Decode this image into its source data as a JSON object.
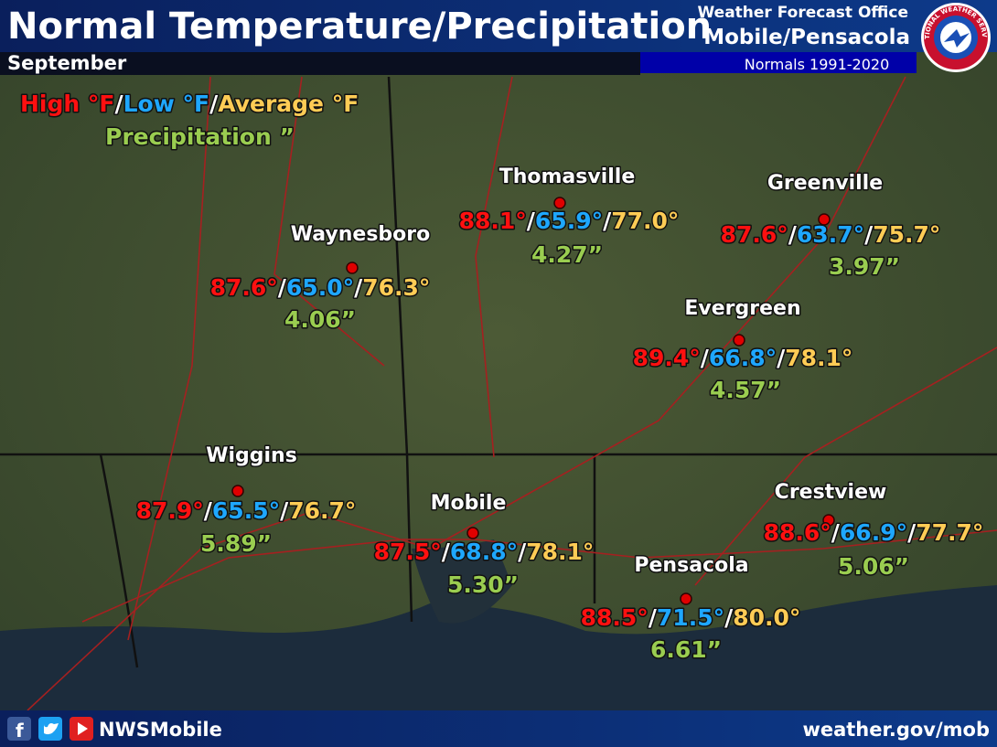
{
  "header": {
    "title": "Normal Temperature/Precipitation",
    "month": "September",
    "office_line1": "Weather Forecast Office",
    "office_line2": "Mobile/Pensacola",
    "normals": "Normals 1991-2020",
    "logo_text": "NATIONAL WEATHER SERVICE"
  },
  "legend": {
    "high": "High °F",
    "low": "Low °F",
    "average": "Average °F",
    "precipitation": "Precipitation ”",
    "separator": "/"
  },
  "cities": [
    {
      "name": "Thomasville",
      "high": "88.1°",
      "low": "65.9°",
      "average": "77.0°",
      "precip": "4.27”"
    },
    {
      "name": "Waynesboro",
      "high": "87.6°",
      "low": "65.0°",
      "average": "76.3°",
      "precip": "4.06”"
    },
    {
      "name": "Greenville",
      "high": "87.6°",
      "low": "63.7°",
      "average": "75.7°",
      "precip": "3.97”"
    },
    {
      "name": "Evergreen",
      "high": "89.4°",
      "low": "66.8°",
      "average": "78.1°",
      "precip": "4.57”"
    },
    {
      "name": "Wiggins",
      "high": "87.9°",
      "low": "65.5°",
      "average": "76.7°",
      "precip": "5.89”"
    },
    {
      "name": "Mobile",
      "high": "87.5°",
      "low": "68.8°",
      "average": "78.1°",
      "precip": "5.30”"
    },
    {
      "name": "Crestview",
      "high": "88.6°",
      "low": "66.9°",
      "average": "77.7°",
      "precip": "5.06”"
    },
    {
      "name": "Pensacola",
      "high": "88.5°",
      "low": "71.5°",
      "average": "80.0°",
      "precip": "6.61”"
    }
  ],
  "footer": {
    "handle": "NWSMobile",
    "url": "weather.gov/mob"
  }
}
